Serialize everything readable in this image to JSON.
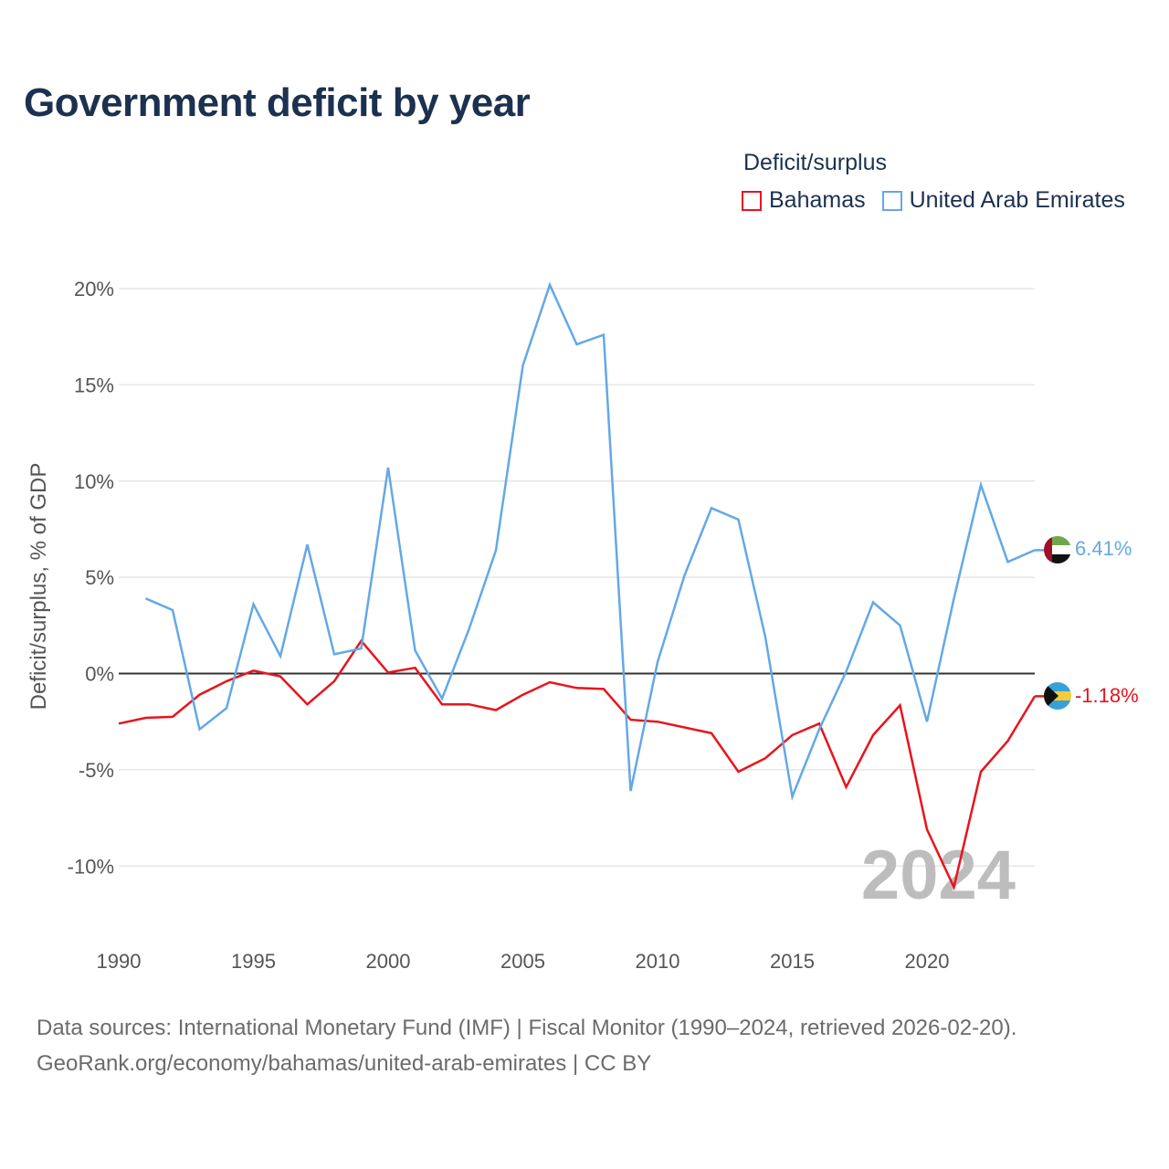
{
  "title": "Government deficit by year",
  "legend": {
    "title": "Deficit/surplus",
    "items": [
      {
        "label": "Bahamas",
        "color": "#e8141c"
      },
      {
        "label": "United Arab Emirates",
        "color": "#64a8e6"
      }
    ]
  },
  "footer": {
    "line1": "Data sources: International Monetary Fund (IMF) | Fiscal Monitor (1990–2024, retrieved 2026-02-20).",
    "line2": "GeoRank.org/economy/bahamas/united-arab-emirates | CC BY"
  },
  "chart_data": {
    "type": "line",
    "title": "Government deficit by year",
    "xlabel": "",
    "ylabel": "Deficit/surplus, % of GDP",
    "xlim": [
      1990,
      2024
    ],
    "ylim": [
      -12.5,
      21
    ],
    "x_ticks": [
      1990,
      1995,
      2000,
      2005,
      2010,
      2015,
      2020
    ],
    "y_ticks": [
      -10,
      -5,
      0,
      5,
      10,
      15,
      20
    ],
    "y_tick_labels": [
      "-10%",
      "-5%",
      "0%",
      "5%",
      "10%",
      "15%",
      "20%"
    ],
    "current_year_label": "2024",
    "series": [
      {
        "name": "Bahamas",
        "color": "#e8141c",
        "end_label": "-1.18%",
        "flag": "bahamas-flag-icon",
        "x": [
          1990,
          1991,
          1992,
          1993,
          1994,
          1995,
          1996,
          1997,
          1998,
          1999,
          2000,
          2001,
          2002,
          2003,
          2004,
          2005,
          2006,
          2007,
          2008,
          2009,
          2010,
          2011,
          2012,
          2013,
          2014,
          2015,
          2016,
          2017,
          2018,
          2019,
          2020,
          2021,
          2022,
          2023,
          2024
        ],
        "values": [
          -2.6,
          -2.3,
          -2.25,
          -1.1,
          -0.4,
          0.15,
          -0.15,
          -1.6,
          -0.4,
          1.7,
          0.05,
          0.3,
          -1.6,
          -1.6,
          -1.9,
          -1.1,
          -0.45,
          -0.75,
          -0.8,
          -2.4,
          -2.5,
          -2.8,
          -3.1,
          -5.1,
          -4.4,
          -3.2,
          -2.6,
          -5.9,
          -3.2,
          -1.65,
          -8.1,
          -11.1,
          -5.1,
          -3.5,
          -1.18
        ]
      },
      {
        "name": "United Arab Emirates",
        "color": "#64a8e6",
        "end_label": "6.41%",
        "flag": "uae-flag-icon",
        "x": [
          1991,
          1992,
          1993,
          1994,
          1995,
          1996,
          1997,
          1998,
          1999,
          2000,
          2001,
          2002,
          2003,
          2004,
          2005,
          2006,
          2007,
          2008,
          2009,
          2010,
          2011,
          2012,
          2013,
          2014,
          2015,
          2016,
          2017,
          2018,
          2019,
          2020,
          2021,
          2022,
          2023,
          2024
        ],
        "values": [
          3.9,
          3.3,
          -2.9,
          -1.8,
          3.6,
          0.9,
          6.7,
          1.0,
          1.3,
          10.7,
          1.2,
          -1.3,
          2.3,
          6.4,
          16.0,
          20.2,
          17.1,
          17.6,
          -6.1,
          0.6,
          5.1,
          8.6,
          8.0,
          1.9,
          -6.4,
          -2.9,
          0.1,
          3.7,
          2.5,
          -2.5,
          3.9,
          9.8,
          5.8,
          6.41
        ]
      }
    ]
  }
}
